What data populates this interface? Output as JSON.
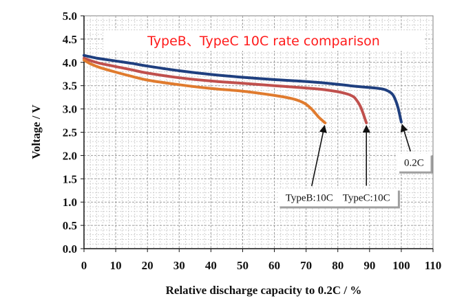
{
  "chart_data": {
    "type": "line",
    "title": "TypeB、TypeC 10C rate comparison",
    "xlabel": "Relative discharge capacity to 0.2C / %",
    "ylabel": "Voltage / V",
    "xlim": [
      0,
      110
    ],
    "ylim": [
      0.0,
      5.0
    ],
    "xticks": [
      "0",
      "10",
      "20",
      "30",
      "40",
      "50",
      "60",
      "70",
      "80",
      "90",
      "100",
      "110"
    ],
    "yticks": [
      "0.0",
      "0.5",
      "1.0",
      "1.5",
      "2.0",
      "2.5",
      "3.0",
      "3.5",
      "4.0",
      "4.5",
      "5.0"
    ],
    "grid": true,
    "series": [
      {
        "name": "0.2C",
        "color": "#1f3f7f",
        "x": [
          0,
          2,
          5,
          10,
          15,
          20,
          30,
          40,
          50,
          60,
          70,
          80,
          85,
          90,
          93,
          95,
          97,
          98,
          99,
          100
        ],
        "y": [
          4.15,
          4.12,
          4.08,
          4.03,
          3.98,
          3.92,
          3.82,
          3.74,
          3.68,
          3.63,
          3.59,
          3.53,
          3.49,
          3.46,
          3.44,
          3.41,
          3.33,
          3.22,
          3.02,
          2.72
        ]
      },
      {
        "name": "TypeC:10C",
        "color": "#c0504d",
        "x": [
          0,
          2,
          5,
          10,
          15,
          20,
          30,
          40,
          50,
          60,
          70,
          75,
          80,
          83,
          85,
          86,
          87,
          88,
          89
        ],
        "y": [
          4.09,
          4.04,
          3.98,
          3.91,
          3.84,
          3.77,
          3.67,
          3.6,
          3.55,
          3.5,
          3.45,
          3.42,
          3.37,
          3.32,
          3.26,
          3.18,
          3.07,
          2.9,
          2.7
        ]
      },
      {
        "name": "TypeB:10C",
        "color": "#e07b2e",
        "x": [
          0,
          2,
          5,
          10,
          15,
          20,
          30,
          40,
          50,
          60,
          65,
          68,
          70,
          72,
          73,
          74,
          75,
          76
        ],
        "y": [
          4.05,
          3.97,
          3.89,
          3.79,
          3.7,
          3.62,
          3.52,
          3.44,
          3.38,
          3.29,
          3.23,
          3.17,
          3.1,
          2.98,
          2.9,
          2.82,
          2.76,
          2.7
        ]
      }
    ],
    "annotations": [
      {
        "text": "TypeB:10C",
        "series": "TypeB:10C",
        "arrow_to": [
          76,
          2.7
        ],
        "at": [
          71,
          1.1
        ]
      },
      {
        "text": "TypeC:10C",
        "series": "TypeC:10C",
        "arrow_to": [
          89,
          2.7
        ],
        "at": [
          89,
          1.1
        ]
      },
      {
        "text": "0.2C",
        "series": "0.2C",
        "arrow_to": [
          100,
          2.72
        ],
        "at": [
          104,
          1.85
        ]
      }
    ]
  }
}
